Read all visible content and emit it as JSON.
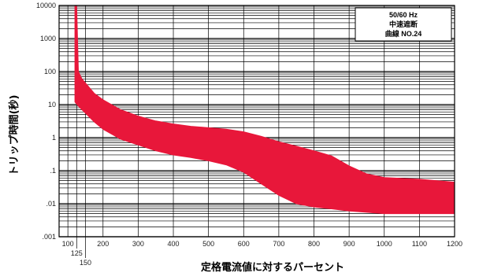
{
  "chart_data": {
    "type": "area",
    "title": "",
    "xlabel": "定格電流値に対するパーセント",
    "ylabel": "トリップ時間(秒)",
    "xlim": [
      75,
      1200
    ],
    "ylim": [
      0.001,
      10000
    ],
    "yscale": "log",
    "grid": true,
    "x_ticks": [
      100,
      125,
      150,
      200,
      300,
      400,
      500,
      600,
      700,
      800,
      900,
      1000,
      1100,
      1200
    ],
    "y_tick_labels": [
      "10000",
      "1000",
      "100",
      "10",
      "1",
      ".1",
      ".01",
      ".001"
    ],
    "y_tick_values": [
      10000,
      1000,
      100,
      10,
      1,
      0.1,
      0.01,
      0.001
    ],
    "legend": {
      "position": "top-right",
      "lines": [
        "50/60 Hz",
        "中速遮断",
        "曲線 NO.24"
      ]
    },
    "band_color": "#e8173a",
    "series": [
      {
        "name": "upper",
        "x": [
          120,
          125,
          130,
          140,
          150,
          175,
          200,
          250,
          300,
          350,
          400,
          450,
          500,
          550,
          600,
          650,
          700,
          750,
          800,
          850,
          900,
          950,
          1000,
          1100,
          1200
        ],
        "y": [
          10000,
          10000,
          100,
          60,
          45,
          22,
          14,
          7,
          4.5,
          3.2,
          2.6,
          2.2,
          2.0,
          1.8,
          1.5,
          1.1,
          0.75,
          0.55,
          0.4,
          0.28,
          0.14,
          0.08,
          0.062,
          0.055,
          0.045
        ]
      },
      {
        "name": "lower",
        "x": [
          120,
          130,
          140,
          150,
          175,
          200,
          250,
          300,
          350,
          400,
          450,
          500,
          550,
          600,
          650,
          700,
          750,
          800,
          850,
          900,
          950,
          1000,
          1100,
          1200
        ],
        "y": [
          12,
          9,
          7,
          5.5,
          3.0,
          1.8,
          0.9,
          0.6,
          0.4,
          0.3,
          0.25,
          0.2,
          0.15,
          0.09,
          0.04,
          0.018,
          0.01,
          0.008,
          0.007,
          0.006,
          0.0055,
          0.005,
          0.005,
          0.005
        ]
      }
    ]
  }
}
